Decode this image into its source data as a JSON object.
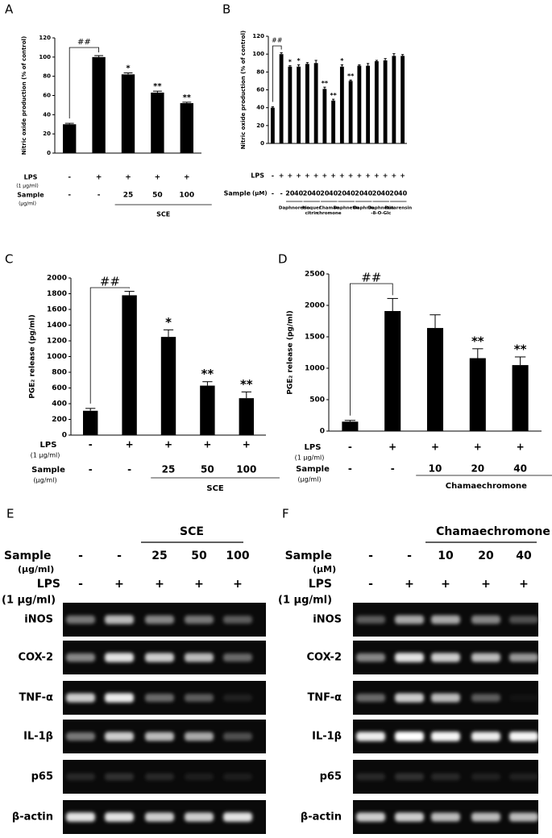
{
  "chart_data": [
    {
      "type": "bar",
      "panel": "A",
      "ylabel": "Nitric oxide production (% of control)",
      "ylim": [
        0,
        120
      ],
      "yticks": [
        0,
        20,
        40,
        60,
        80,
        100,
        120
      ],
      "color": "#000000",
      "values": [
        30,
        100,
        82,
        63,
        52
      ],
      "errors": [
        1,
        1.5,
        1.5,
        1.5,
        1
      ],
      "comparison": "##",
      "significance": [
        null,
        null,
        "*",
        "**",
        "**"
      ],
      "rows": [
        {
          "label": "LPS",
          "unit": "(1 μg/ml)",
          "cells": [
            "-",
            "+",
            "+",
            "+",
            "+"
          ]
        },
        {
          "label": "Sample",
          "unit": "(μg/ml)",
          "cells": [
            "-",
            "-",
            "25",
            "50",
            "100"
          ]
        }
      ],
      "groups": [
        [
          "SCE"
        ]
      ]
    },
    {
      "type": "bar",
      "panel": "B",
      "ylabel": "Nitric oxide production (% of control)",
      "ylim": [
        0,
        120
      ],
      "yticks": [
        0,
        20,
        40,
        60,
        80,
        100,
        120
      ],
      "color": "#000000",
      "values": [
        40,
        100,
        86,
        86,
        89,
        90,
        61,
        48,
        86,
        70,
        87,
        87,
        92,
        93,
        98,
        98
      ],
      "errors": [
        1,
        1.5,
        1,
        2,
        1.5,
        3,
        2,
        1.5,
        2,
        1,
        1,
        2.5,
        1,
        2,
        2.5,
        1.5
      ],
      "comparison": "##",
      "significance": [
        null,
        null,
        "*",
        "*",
        null,
        null,
        "**",
        "**",
        "*",
        "**",
        null,
        null,
        null,
        null,
        null,
        null
      ],
      "rows": [
        {
          "label": "LPS",
          "cells": [
            "-",
            "+",
            "+",
            "+",
            "+",
            "+",
            "+",
            "+",
            "+",
            "+",
            "+",
            "+",
            "+",
            "+",
            "+",
            "+"
          ]
        },
        {
          "label": "Sample",
          "unit": "(μM)",
          "cells": [
            "-",
            "-",
            "20",
            "40",
            "20",
            "40",
            "20",
            "40",
            "20",
            "40",
            "20",
            "40",
            "20",
            "40",
            "20",
            "40"
          ]
        }
      ],
      "groups": [
        [
          "Daphnoretin"
        ],
        [
          "Isoquer",
          "citrin"
        ],
        [
          "Chamae",
          "chromone"
        ],
        [
          "Daphnetin"
        ],
        [
          "Daphnin"
        ],
        [
          "Daphnetin",
          "-8-O-Glc"
        ],
        [
          "Rutarensin"
        ]
      ]
    },
    {
      "type": "bar",
      "panel": "C",
      "ylabel": "PGE₂ release (pg/ml)",
      "ylim": [
        0,
        2000
      ],
      "yticks": [
        0,
        200,
        400,
        600,
        800,
        1000,
        1200,
        1400,
        1600,
        1800,
        2000
      ],
      "color": "#000000",
      "values": [
        310,
        1780,
        1250,
        630,
        470
      ],
      "errors": [
        30,
        50,
        90,
        50,
        80
      ],
      "comparison": "##",
      "significance": [
        null,
        null,
        "*",
        "**",
        "**"
      ],
      "rows": [
        {
          "label": "LPS",
          "unit": "(1 μg/ml)",
          "cells": [
            "-",
            "+",
            "+",
            "+",
            "+"
          ]
        },
        {
          "label": "Sample",
          "unit": "(μg/ml)",
          "cells": [
            "-",
            "-",
            "25",
            "50",
            "100"
          ]
        }
      ],
      "groups": [
        [
          "SCE"
        ]
      ]
    },
    {
      "type": "bar",
      "panel": "D",
      "ylabel": "PGE₂ release (pg/ml)",
      "ylim": [
        0,
        2500
      ],
      "yticks": [
        0,
        500,
        1000,
        1500,
        2000,
        2500
      ],
      "color": "#000000",
      "values": [
        150,
        1910,
        1640,
        1160,
        1050
      ],
      "errors": [
        20,
        200,
        210,
        150,
        130
      ],
      "comparison": "##",
      "significance": [
        null,
        null,
        null,
        "**",
        "**"
      ],
      "rows": [
        {
          "label": "LPS",
          "unit": "(1 μg/ml)",
          "cells": [
            "-",
            "+",
            "+",
            "+",
            "+"
          ]
        },
        {
          "label": "Sample",
          "unit": "(μg/ml)",
          "cells": [
            "-",
            "-",
            "10",
            "20",
            "40"
          ]
        }
      ],
      "groups": [
        [
          "Chamaechromone"
        ]
      ]
    }
  ],
  "gels": [
    {
      "panel": "E",
      "title": "SCE",
      "rows": [
        {
          "label": "Sample",
          "unit": "(μg/ml)",
          "cells": [
            "-",
            "-",
            "25",
            "50",
            "100"
          ]
        },
        {
          "label": "LPS",
          "unit": "(1 μg/ml)",
          "cells": [
            "-",
            "+",
            "+",
            "+",
            "+"
          ]
        }
      ],
      "bands": [
        "iNOS",
        "COX-2",
        "TNF-α",
        "IL-1β",
        "p65",
        "β-actin"
      ]
    },
    {
      "panel": "F",
      "title": "Chamaechromone",
      "rows": [
        {
          "label": "Sample",
          "unit": "(μM)",
          "cells": [
            "-",
            "-",
            "10",
            "20",
            "40"
          ]
        },
        {
          "label": "LPS",
          "unit": "(1 μg/ml)",
          "cells": [
            "-",
            "+",
            "+",
            "+",
            "+"
          ]
        }
      ],
      "bands": [
        "iNOS",
        "COX-2",
        "TNF-α",
        "IL-1β",
        "p65",
        "β-actin"
      ]
    }
  ]
}
